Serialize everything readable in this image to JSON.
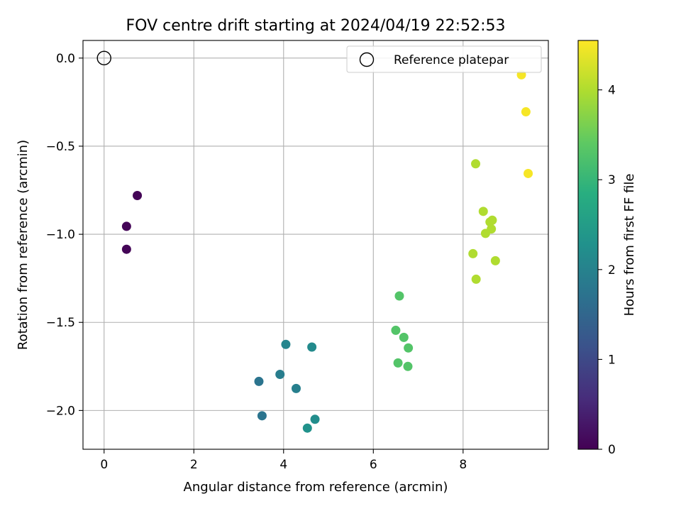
{
  "chart_data": {
    "type": "scatter",
    "title": "FOV centre drift starting at 2024/04/19 22:52:53",
    "xlabel": "Angular distance from reference (arcmin)",
    "ylabel": "Rotation from reference (arcmin)",
    "xlim": [
      -0.47,
      9.9
    ],
    "ylim": [
      -2.22,
      0.1
    ],
    "x_ticks": [
      0,
      2,
      4,
      6,
      8
    ],
    "y_ticks": [
      0.0,
      -0.5,
      -1.0,
      -1.5,
      -2.0
    ],
    "x_tick_labels": [
      "0",
      "2",
      "4",
      "6",
      "8"
    ],
    "y_tick_labels": [
      "0.0",
      "−0.5",
      "−1.0",
      "−1.5",
      "−2.0"
    ],
    "grid": true,
    "legend": {
      "position": "top-right",
      "entries": [
        "Reference platepar"
      ]
    },
    "reference": {
      "name": "Reference platepar",
      "x": 0,
      "y": 0
    },
    "colorbar": {
      "label": "Hours from first FF file",
      "colormap": "viridis",
      "min": 0,
      "max": 4.55,
      "ticks": [
        0,
        1,
        2,
        3,
        4
      ],
      "tick_labels": [
        "0",
        "1",
        "2",
        "3",
        "4"
      ]
    },
    "points": [
      {
        "x": 0.74,
        "y": -0.78,
        "c": 0.05
      },
      {
        "x": 0.5,
        "y": -0.955,
        "c": 0.05
      },
      {
        "x": 0.5,
        "y": -1.085,
        "c": 0.05
      },
      {
        "x": 3.45,
        "y": -1.835,
        "c": 1.75
      },
      {
        "x": 3.52,
        "y": -2.03,
        "c": 1.75
      },
      {
        "x": 3.92,
        "y": -1.795,
        "c": 1.9
      },
      {
        "x": 4.05,
        "y": -1.625,
        "c": 2.05
      },
      {
        "x": 4.28,
        "y": -1.875,
        "c": 1.95
      },
      {
        "x": 4.63,
        "y": -1.64,
        "c": 2.15
      },
      {
        "x": 4.53,
        "y": -2.1,
        "c": 2.3
      },
      {
        "x": 4.7,
        "y": -2.05,
        "c": 2.2
      },
      {
        "x": 6.58,
        "y": -1.35,
        "c": 3.3
      },
      {
        "x": 6.5,
        "y": -1.545,
        "c": 3.3
      },
      {
        "x": 6.68,
        "y": -1.585,
        "c": 3.3
      },
      {
        "x": 6.78,
        "y": -1.645,
        "c": 3.3
      },
      {
        "x": 6.55,
        "y": -1.73,
        "c": 3.3
      },
      {
        "x": 6.77,
        "y": -1.75,
        "c": 3.3
      },
      {
        "x": 8.28,
        "y": -0.6,
        "c": 4.0
      },
      {
        "x": 8.45,
        "y": -0.87,
        "c": 4.0
      },
      {
        "x": 8.6,
        "y": -0.93,
        "c": 4.0
      },
      {
        "x": 8.65,
        "y": -0.92,
        "c": 4.0
      },
      {
        "x": 8.5,
        "y": -0.995,
        "c": 4.0
      },
      {
        "x": 8.63,
        "y": -0.97,
        "c": 4.0
      },
      {
        "x": 8.22,
        "y": -1.11,
        "c": 4.0
      },
      {
        "x": 8.72,
        "y": -1.15,
        "c": 4.0
      },
      {
        "x": 8.29,
        "y": -1.255,
        "c": 4.0
      },
      {
        "x": 9.3,
        "y": -0.095,
        "c": 4.5
      },
      {
        "x": 9.4,
        "y": -0.305,
        "c": 4.5
      },
      {
        "x": 9.45,
        "y": -0.655,
        "c": 4.5
      }
    ]
  }
}
